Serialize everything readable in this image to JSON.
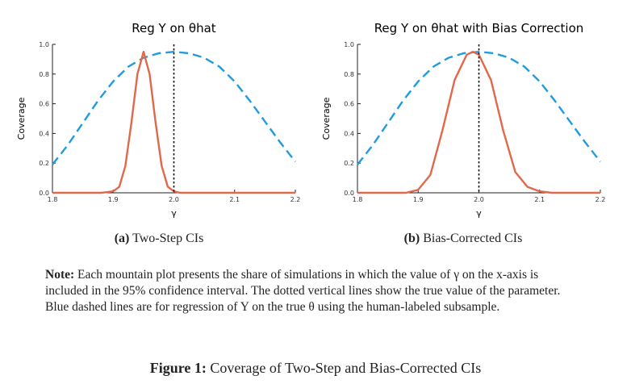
{
  "chart_data": [
    {
      "type": "line",
      "title": "Reg Y on θhat",
      "xlabel": "γ",
      "ylabel": "Coverage",
      "xlim": [
        1.8,
        2.2
      ],
      "ylim": [
        0.0,
        1.0
      ],
      "xticks": [
        "1.8",
        "1.9",
        "2.0",
        "2.1",
        "2.2"
      ],
      "yticks": [
        "0.0",
        "0.2",
        "0.4",
        "0.6",
        "0.8",
        "1.0"
      ],
      "true_value": 2.0,
      "series": [
        {
          "style": "dashed",
          "color": "#1f9bde",
          "x": [
            1.8,
            1.825,
            1.85,
            1.875,
            1.9,
            1.925,
            1.95,
            1.975,
            2.0,
            2.025,
            2.05,
            2.075,
            2.1,
            2.125,
            2.15,
            2.175,
            2.2
          ],
          "y": [
            0.19,
            0.32,
            0.47,
            0.62,
            0.75,
            0.85,
            0.91,
            0.94,
            0.95,
            0.94,
            0.91,
            0.85,
            0.75,
            0.62,
            0.48,
            0.34,
            0.21
          ]
        },
        {
          "style": "solid",
          "color": "#e0684b",
          "x": [
            1.8,
            1.88,
            1.9,
            1.91,
            1.92,
            1.93,
            1.94,
            1.95,
            1.96,
            1.97,
            1.98,
            1.99,
            2.0,
            2.01,
            2.05,
            2.2
          ],
          "y": [
            0.0,
            0.0,
            0.01,
            0.04,
            0.18,
            0.47,
            0.8,
            0.95,
            0.8,
            0.47,
            0.18,
            0.04,
            0.01,
            0.0,
            0.0,
            0.0
          ]
        }
      ]
    },
    {
      "type": "line",
      "title": "Reg Y on θhat with Bias Correction",
      "xlabel": "γ",
      "ylabel": "Coverage",
      "xlim": [
        1.8,
        2.2
      ],
      "ylim": [
        0.0,
        1.0
      ],
      "xticks": [
        "1.8",
        "1.9",
        "2.0",
        "2.1",
        "2.2"
      ],
      "yticks": [
        "0.0",
        "0.2",
        "0.4",
        "0.6",
        "0.8",
        "1.0"
      ],
      "true_value": 2.0,
      "series": [
        {
          "style": "dashed",
          "color": "#1f9bde",
          "x": [
            1.8,
            1.825,
            1.85,
            1.875,
            1.9,
            1.925,
            1.95,
            1.975,
            2.0,
            2.025,
            2.05,
            2.075,
            2.1,
            2.125,
            2.15,
            2.175,
            2.2
          ],
          "y": [
            0.19,
            0.32,
            0.47,
            0.62,
            0.75,
            0.85,
            0.91,
            0.94,
            0.95,
            0.94,
            0.91,
            0.85,
            0.75,
            0.62,
            0.48,
            0.34,
            0.21
          ]
        },
        {
          "style": "solid",
          "color": "#e0684b",
          "x": [
            1.8,
            1.88,
            1.9,
            1.92,
            1.94,
            1.96,
            1.98,
            1.99,
            2.0,
            2.02,
            2.04,
            2.06,
            2.08,
            2.1,
            2.12,
            2.2
          ],
          "y": [
            0.0,
            0.0,
            0.02,
            0.12,
            0.42,
            0.76,
            0.93,
            0.95,
            0.93,
            0.76,
            0.42,
            0.14,
            0.04,
            0.01,
            0.0,
            0.0
          ]
        }
      ]
    }
  ],
  "captions": {
    "a_label": "(a)",
    "a_text": "Two-Step CIs",
    "b_label": "(b)",
    "b_text": "Bias-Corrected CIs"
  },
  "note": {
    "label": "Note:",
    "text": "Each mountain plot presents the share of simulations in which the value of γ on the x-axis is included in the 95% confidence interval. The dotted vertical lines show the true value of the parameter. Blue dashed lines are for regression of Y on the true θ using the human-labeled subsample."
  },
  "figure": {
    "label": "Figure 1:",
    "text": "Coverage of Two-Step and Bias-Corrected CIs"
  }
}
